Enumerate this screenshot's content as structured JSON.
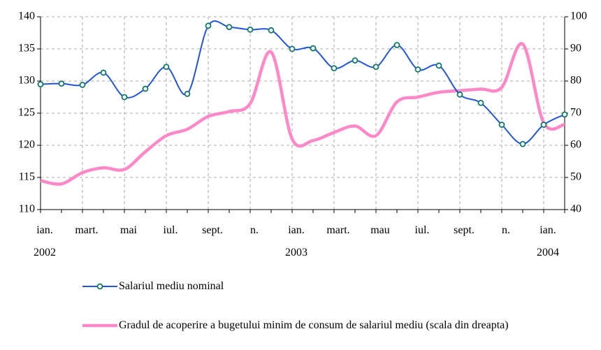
{
  "chart_data": {
    "type": "line",
    "categories": [
      "ian.\n2002",
      null,
      "mart.",
      null,
      "mai",
      null,
      "iul.",
      null,
      "sept.",
      null,
      "n.",
      null,
      "ian.\n2003",
      null,
      "mart.",
      null,
      "mau",
      null,
      "iul.",
      null,
      "sept.",
      null,
      "n.",
      null,
      "ian.\n2004",
      null
    ],
    "series": [
      {
        "name": "Salariul mediu nominal",
        "color": "#2255dd",
        "marker": true,
        "values": [
          129.5,
          129.6,
          129.4,
          131.3,
          127.5,
          128.8,
          132.2,
          128.0,
          138.6,
          138.4,
          138.0,
          137.9,
          135.0,
          135.1,
          132.0,
          133.2,
          132.2,
          135.6,
          131.8,
          132.4,
          127.9,
          126.6,
          123.2,
          120.2,
          123.2,
          124.8
        ]
      },
      {
        "name": "Gradul de acoperire a bugetului minim de consum de salariul mediu (scala din dreapta)",
        "color": "#ff88c8",
        "axis": "y2",
        "marker": false,
        "values": [
          49,
          48,
          51.5,
          53,
          52.5,
          58,
          63,
          65,
          69,
          70.5,
          73,
          89,
          62,
          61.5,
          64,
          66,
          63,
          73.5,
          75,
          76.5,
          77,
          77.5,
          78,
          91.5,
          67,
          66.5
        ]
      }
    ],
    "ylim": [
      110,
      140
    ],
    "yticks": [
      110,
      115,
      120,
      125,
      130,
      135,
      140
    ],
    "y2lim": [
      40,
      100
    ],
    "y2ticks": [
      40,
      50,
      60,
      70,
      80,
      90,
      100
    ],
    "grid": true
  }
}
